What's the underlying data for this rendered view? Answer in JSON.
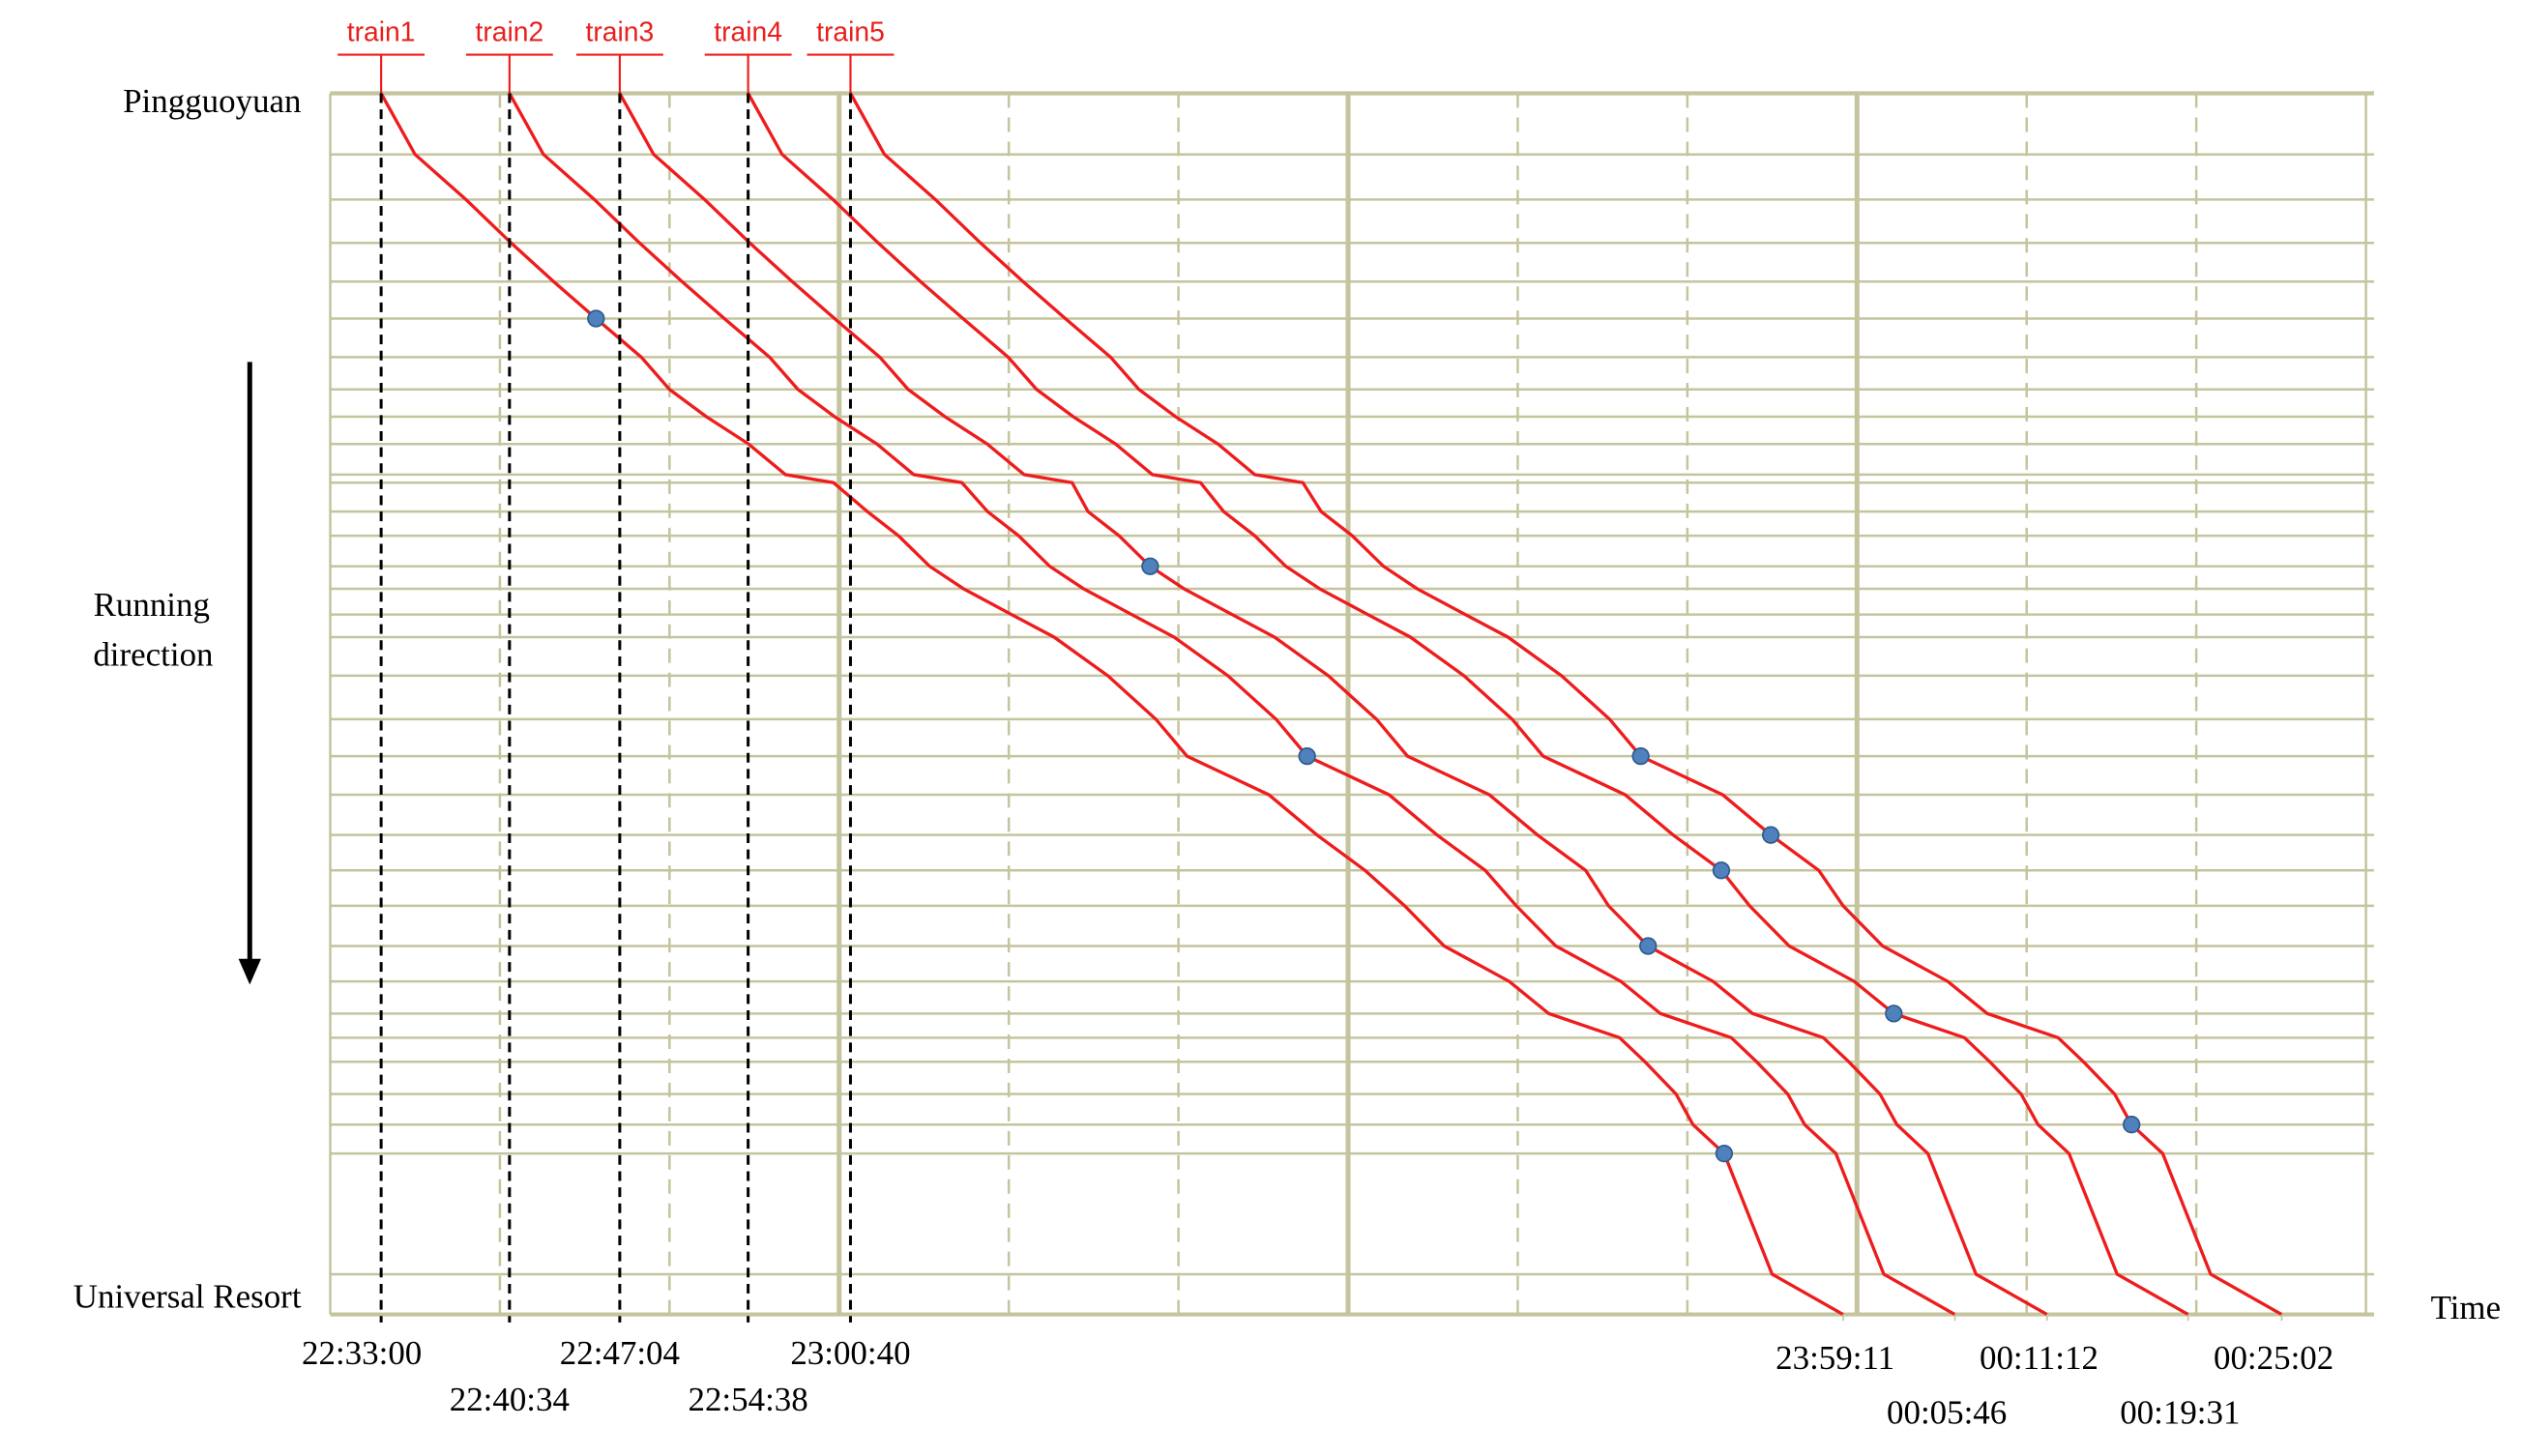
{
  "chart_data": {
    "type": "line",
    "x_label": "Time",
    "annotation": [
      "Running",
      "direction"
    ],
    "stations": [
      "Pingguoyuan",
      null,
      null,
      null,
      null,
      null,
      null,
      null,
      null,
      null,
      null,
      null,
      null,
      null,
      null,
      null,
      null,
      null,
      null,
      null,
      null,
      null,
      null,
      null,
      null,
      null,
      null,
      null,
      null,
      null,
      null,
      null,
      null,
      null,
      "Universal Resort"
    ],
    "stations_pos": [
      0,
      38,
      66,
      93,
      117,
      140,
      164,
      184,
      201,
      218,
      237,
      242,
      260,
      275,
      294,
      308,
      324,
      338,
      362,
      389,
      412,
      436,
      461,
      483,
      505,
      530,
      552,
      572,
      587,
      602,
      622,
      641,
      659,
      734,
      759
    ],
    "ylim": [
      0,
      759
    ],
    "xlim": [
      81000,
      88200
    ],
    "xgrid": [
      81600,
      82200,
      82800,
      83400,
      84000,
      84600,
      85200,
      85800,
      86400,
      87000,
      87600
    ],
    "xgrid_major": [
      82800,
      84600,
      86400
    ],
    "departure_xticks": [
      {
        "value": 81180,
        "label": "22:33:00"
      },
      {
        "value": 81634,
        "label": "22:40:34"
      },
      {
        "value": 82024,
        "label": "22:47:04"
      },
      {
        "value": 82478,
        "label": "22:54:38"
      },
      {
        "value": 82840,
        "label": "23:00:40"
      }
    ],
    "arrival_xticks": [
      {
        "value": 86351,
        "label": "23:59:11"
      },
      {
        "value": 86746,
        "label": "00:05:46"
      },
      {
        "value": 87072,
        "label": "00:11:12"
      },
      {
        "value": 87571,
        "label": "00:19:31"
      },
      {
        "value": 87902,
        "label": "00:25:02"
      }
    ],
    "series": [
      {
        "name": "train1",
        "color": "#ee1c1c",
        "values": [
          81180,
          81300,
          81480,
          81640,
          81790,
          81940,
          82100,
          82200,
          82330,
          82480,
          82610,
          82780,
          82900,
          83010,
          83120,
          83240,
          83410,
          83560,
          83750,
          83920,
          84030,
          84320,
          84490,
          84660,
          84800,
          84940,
          85170,
          85310,
          85560,
          85650,
          85760,
          85820,
          85930,
          86100,
          86351
        ]
      },
      {
        "name": "train2",
        "color": "#ee1c1c",
        "values": [
          81634,
          81754,
          81934,
          82094,
          82244,
          82394,
          82554,
          82654,
          82784,
          82934,
          83064,
          83234,
          83325,
          83435,
          83545,
          83665,
          83835,
          83985,
          84175,
          84345,
          84455,
          84745,
          84915,
          85085,
          85195,
          85335,
          85565,
          85705,
          85955,
          86045,
          86155,
          86215,
          86325,
          86495,
          86746
        ]
      },
      {
        "name": "train3",
        "color": "#ee1c1c",
        "values": [
          82024,
          82144,
          82324,
          82484,
          82634,
          82784,
          82944,
          83044,
          83174,
          83324,
          83454,
          83624,
          83680,
          83790,
          83900,
          84020,
          84190,
          84340,
          84530,
          84700,
          84810,
          85100,
          85270,
          85440,
          85521,
          85661,
          85891,
          86031,
          86281,
          86371,
          86481,
          86541,
          86651,
          86821,
          87072
        ]
      },
      {
        "name": "train4",
        "color": "#ee1c1c",
        "values": [
          82478,
          82598,
          82778,
          82938,
          83088,
          83238,
          83398,
          83498,
          83628,
          83778,
          83908,
          84078,
          84160,
          84270,
          84380,
          84500,
          84670,
          84820,
          85010,
          85180,
          85290,
          85580,
          85750,
          85920,
          86020,
          86160,
          86390,
          86530,
          86780,
          86870,
          86980,
          87040,
          87150,
          87320,
          87571
        ]
      },
      {
        "name": "train5",
        "color": "#ee1c1c",
        "values": [
          82840,
          82960,
          83140,
          83300,
          83450,
          83600,
          83760,
          83860,
          83990,
          84140,
          84270,
          84440,
          84505,
          84615,
          84725,
          84845,
          85015,
          85165,
          85355,
          85525,
          85635,
          85925,
          86095,
          86265,
          86351,
          86491,
          86721,
          86861,
          87111,
          87201,
          87311,
          87371,
          87481,
          87651,
          87902
        ]
      }
    ],
    "markers": [
      [
        0,
        5
      ],
      [
        2,
        14
      ],
      [
        1,
        20
      ],
      [
        4,
        20
      ],
      [
        4,
        22
      ],
      [
        3,
        23
      ],
      [
        2,
        25
      ],
      [
        3,
        27
      ],
      [
        0,
        32
      ],
      [
        4,
        31
      ]
    ],
    "marker_color": "#4f81bd",
    "grid_color": "#c4c49e"
  }
}
